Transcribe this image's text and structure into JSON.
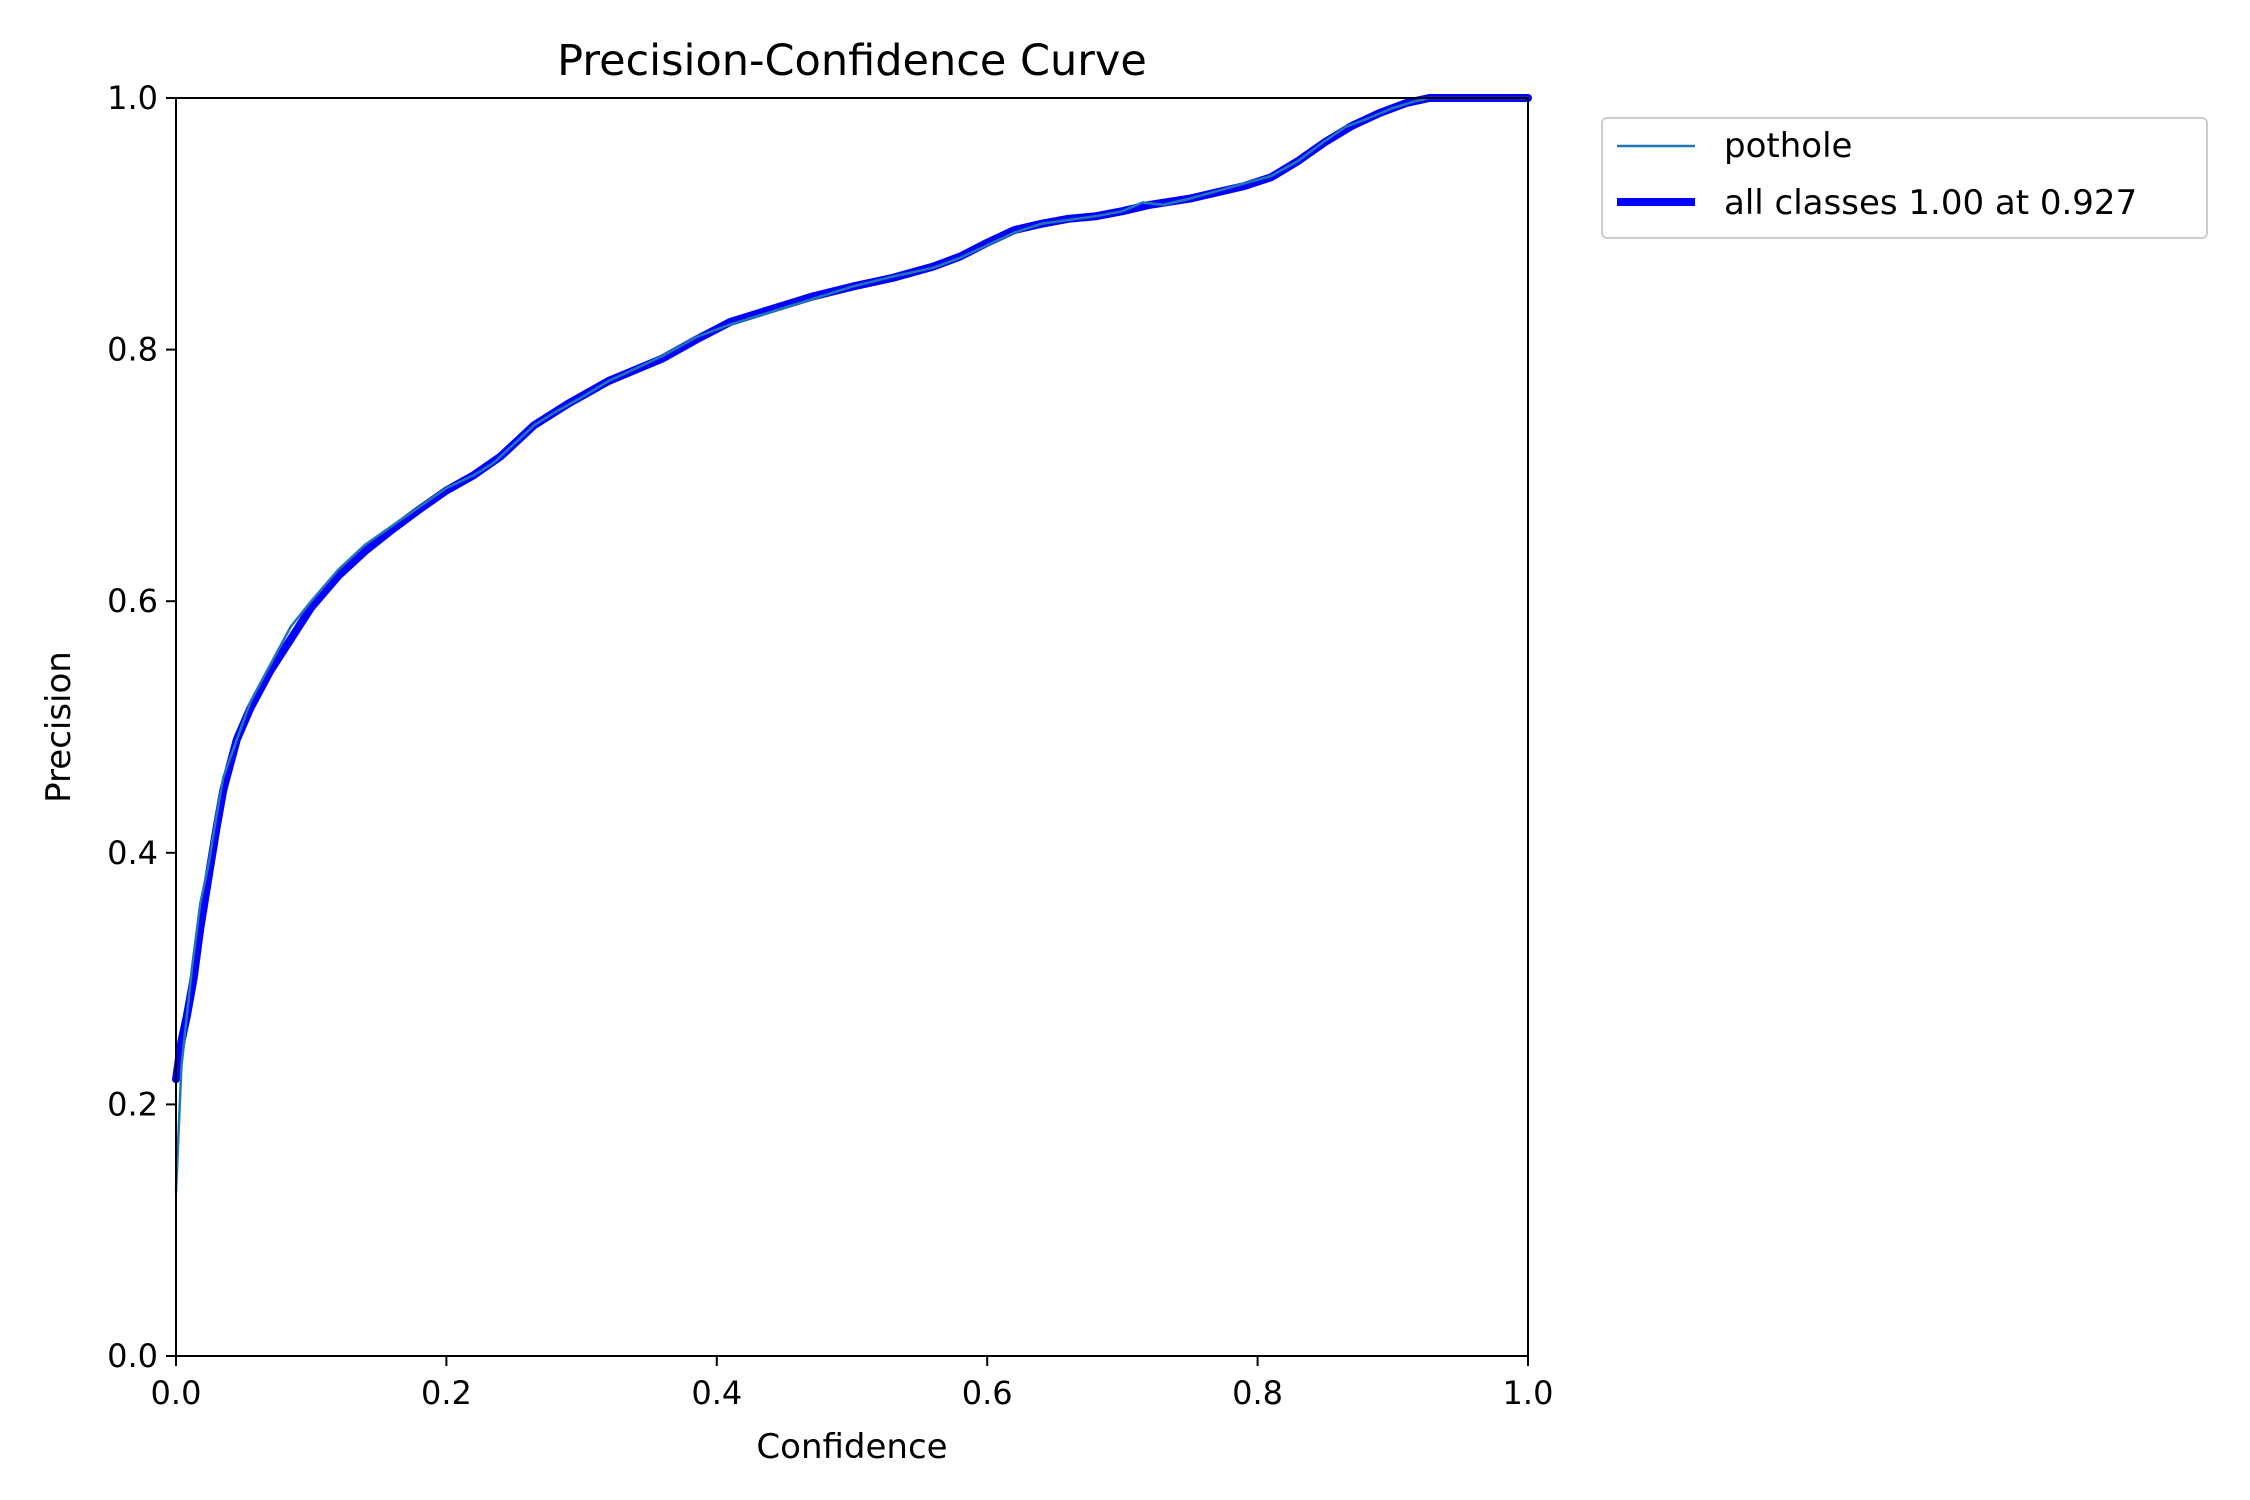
{
  "chart_data": {
    "type": "line",
    "title": "Precision-Confidence Curve",
    "xlabel": "Confidence",
    "ylabel": "Precision",
    "xlim": [
      0.0,
      1.0
    ],
    "ylim": [
      0.0,
      1.0
    ],
    "x_ticks": [
      "0.0",
      "0.2",
      "0.4",
      "0.6",
      "0.8",
      "1.0"
    ],
    "y_ticks": [
      "0.0",
      "0.2",
      "0.4",
      "0.6",
      "0.8",
      "1.0"
    ],
    "grid": false,
    "legend_position": "outside-top-right",
    "series": [
      {
        "name": "pothole",
        "color": "#1f77b4",
        "line_style": "thin",
        "points": [
          [
            0.0,
            0.13
          ],
          [
            0.002,
            0.18
          ],
          [
            0.004,
            0.23
          ],
          [
            0.008,
            0.27
          ],
          [
            0.012,
            0.31
          ],
          [
            0.018,
            0.36
          ],
          [
            0.024,
            0.39
          ],
          [
            0.03,
            0.43
          ],
          [
            0.035,
            0.46
          ],
          [
            0.045,
            0.49
          ],
          [
            0.055,
            0.52
          ],
          [
            0.07,
            0.55
          ],
          [
            0.085,
            0.58
          ],
          [
            0.1,
            0.6
          ],
          [
            0.12,
            0.625
          ],
          [
            0.14,
            0.645
          ],
          [
            0.16,
            0.66
          ],
          [
            0.18,
            0.675
          ],
          [
            0.2,
            0.69
          ],
          [
            0.22,
            0.7
          ],
          [
            0.235,
            0.71
          ],
          [
            0.25,
            0.725
          ],
          [
            0.265,
            0.74
          ],
          [
            0.28,
            0.75
          ],
          [
            0.3,
            0.762
          ],
          [
            0.32,
            0.775
          ],
          [
            0.34,
            0.785
          ],
          [
            0.36,
            0.795
          ],
          [
            0.385,
            0.81
          ],
          [
            0.41,
            0.82
          ],
          [
            0.44,
            0.83
          ],
          [
            0.47,
            0.84
          ],
          [
            0.5,
            0.85
          ],
          [
            0.53,
            0.858
          ],
          [
            0.56,
            0.865
          ],
          [
            0.58,
            0.873
          ],
          [
            0.6,
            0.883
          ],
          [
            0.62,
            0.893
          ],
          [
            0.64,
            0.9
          ],
          [
            0.66,
            0.903
          ],
          [
            0.68,
            0.906
          ],
          [
            0.7,
            0.91
          ],
          [
            0.715,
            0.917
          ],
          [
            0.73,
            0.915
          ],
          [
            0.75,
            0.92
          ],
          [
            0.77,
            0.926
          ],
          [
            0.79,
            0.932
          ],
          [
            0.81,
            0.938
          ],
          [
            0.83,
            0.95
          ],
          [
            0.85,
            0.966
          ],
          [
            0.865,
            0.977
          ],
          [
            0.88,
            0.983
          ],
          [
            0.9,
            0.992
          ],
          [
            0.915,
            0.997
          ],
          [
            0.927,
            1.0
          ],
          [
            1.0,
            1.0
          ]
        ]
      },
      {
        "name": "all classes 1.00 at 0.927",
        "color": "#0000ff",
        "line_style": "thick",
        "points": [
          [
            0.0,
            0.22
          ],
          [
            0.004,
            0.25
          ],
          [
            0.008,
            0.27
          ],
          [
            0.013,
            0.3
          ],
          [
            0.018,
            0.34
          ],
          [
            0.024,
            0.38
          ],
          [
            0.03,
            0.42
          ],
          [
            0.035,
            0.45
          ],
          [
            0.045,
            0.49
          ],
          [
            0.055,
            0.515
          ],
          [
            0.07,
            0.545
          ],
          [
            0.085,
            0.57
          ],
          [
            0.1,
            0.595
          ],
          [
            0.12,
            0.62
          ],
          [
            0.14,
            0.64
          ],
          [
            0.16,
            0.657
          ],
          [
            0.18,
            0.673
          ],
          [
            0.2,
            0.688
          ],
          [
            0.22,
            0.7
          ],
          [
            0.24,
            0.715
          ],
          [
            0.265,
            0.74
          ],
          [
            0.29,
            0.757
          ],
          [
            0.32,
            0.775
          ],
          [
            0.36,
            0.793
          ],
          [
            0.385,
            0.808
          ],
          [
            0.41,
            0.822
          ],
          [
            0.44,
            0.832
          ],
          [
            0.47,
            0.842
          ],
          [
            0.5,
            0.85
          ],
          [
            0.53,
            0.857
          ],
          [
            0.56,
            0.866
          ],
          [
            0.58,
            0.874
          ],
          [
            0.6,
            0.885
          ],
          [
            0.62,
            0.895
          ],
          [
            0.64,
            0.9
          ],
          [
            0.66,
            0.904
          ],
          [
            0.68,
            0.906
          ],
          [
            0.7,
            0.91
          ],
          [
            0.72,
            0.915
          ],
          [
            0.75,
            0.92
          ],
          [
            0.77,
            0.925
          ],
          [
            0.79,
            0.93
          ],
          [
            0.81,
            0.937
          ],
          [
            0.83,
            0.95
          ],
          [
            0.85,
            0.965
          ],
          [
            0.87,
            0.978
          ],
          [
            0.89,
            0.988
          ],
          [
            0.91,
            0.996
          ],
          [
            0.927,
            1.0
          ],
          [
            1.0,
            1.0
          ]
        ]
      }
    ]
  }
}
